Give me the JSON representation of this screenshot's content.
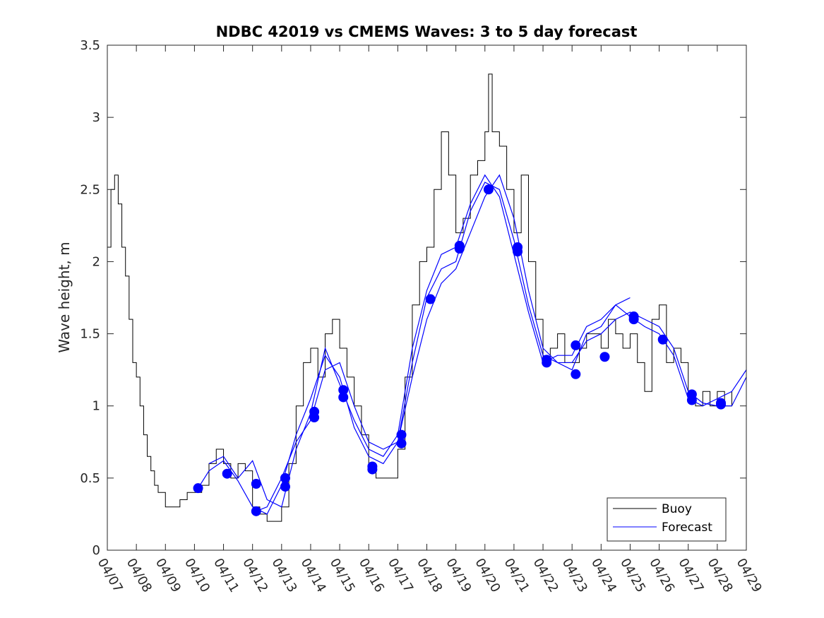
{
  "chart_data": {
    "type": "line",
    "title": "NDBC 42019 vs CMEMS Waves: 3 to 5 day forecast",
    "xlabel": "",
    "ylabel": "Wave height, m",
    "xlim": [
      "04/07",
      "04/29"
    ],
    "ylim": [
      0,
      3.5
    ],
    "y_ticks": [
      "0",
      "0.5",
      "1",
      "1.5",
      "2",
      "2.5",
      "3",
      "3.5"
    ],
    "x_ticks": [
      "04/07",
      "04/08",
      "04/09",
      "04/10",
      "04/11",
      "04/12",
      "04/13",
      "04/14",
      "04/15",
      "04/16",
      "04/17",
      "04/18",
      "04/19",
      "04/20",
      "04/21",
      "04/22",
      "04/23",
      "04/24",
      "04/25",
      "04/26",
      "04/27",
      "04/28",
      "04/29"
    ],
    "grid": false,
    "legend_position": "bottom-right",
    "legend": [
      "Buoy",
      "Forecast"
    ],
    "colors": {
      "buoy": "#000000",
      "forecast": "#0000ff"
    },
    "series": [
      {
        "name": "Buoy",
        "color": "#000000",
        "points": [
          [
            "04/07 00:00",
            2.1
          ],
          [
            "04/07 03:00",
            2.5
          ],
          [
            "04/07 06:00",
            2.6
          ],
          [
            "04/07 09:00",
            2.4
          ],
          [
            "04/07 12:00",
            2.1
          ],
          [
            "04/07 15:00",
            1.9
          ],
          [
            "04/07 18:00",
            1.6
          ],
          [
            "04/07 21:00",
            1.3
          ],
          [
            "04/08 00:00",
            1.2
          ],
          [
            "04/08 03:00",
            1.0
          ],
          [
            "04/08 06:00",
            0.8
          ],
          [
            "04/08 09:00",
            0.65
          ],
          [
            "04/08 12:00",
            0.55
          ],
          [
            "04/08 15:00",
            0.45
          ],
          [
            "04/08 18:00",
            0.4
          ],
          [
            "04/08 21:00",
            0.4
          ],
          [
            "04/09 00:00",
            0.3
          ],
          [
            "04/09 06:00",
            0.3
          ],
          [
            "04/09 12:00",
            0.35
          ],
          [
            "04/09 18:00",
            0.4
          ],
          [
            "04/10 00:00",
            0.4
          ],
          [
            "04/10 06:00",
            0.45
          ],
          [
            "04/10 12:00",
            0.6
          ],
          [
            "04/10 18:00",
            0.7
          ],
          [
            "04/11 00:00",
            0.6
          ],
          [
            "04/11 06:00",
            0.5
          ],
          [
            "04/11 12:00",
            0.6
          ],
          [
            "04/11 18:00",
            0.55
          ],
          [
            "04/12 00:00",
            0.3
          ],
          [
            "04/12 06:00",
            0.25
          ],
          [
            "04/12 12:00",
            0.2
          ],
          [
            "04/12 18:00",
            0.2
          ],
          [
            "04/13 00:00",
            0.3
          ],
          [
            "04/13 06:00",
            0.6
          ],
          [
            "04/13 12:00",
            1.0
          ],
          [
            "04/13 18:00",
            1.3
          ],
          [
            "04/14 00:00",
            1.4
          ],
          [
            "04/14 06:00",
            1.2
          ],
          [
            "04/14 12:00",
            1.5
          ],
          [
            "04/14 18:00",
            1.6
          ],
          [
            "04/15 00:00",
            1.4
          ],
          [
            "04/15 06:00",
            1.2
          ],
          [
            "04/15 12:00",
            1.0
          ],
          [
            "04/15 18:00",
            0.8
          ],
          [
            "04/16 00:00",
            0.6
          ],
          [
            "04/16 06:00",
            0.5
          ],
          [
            "04/16 12:00",
            0.5
          ],
          [
            "04/16 18:00",
            0.5
          ],
          [
            "04/17 00:00",
            0.7
          ],
          [
            "04/17 06:00",
            1.2
          ],
          [
            "04/17 12:00",
            1.7
          ],
          [
            "04/17 18:00",
            2.0
          ],
          [
            "04/18 00:00",
            2.1
          ],
          [
            "04/18 06:00",
            2.5
          ],
          [
            "04/18 12:00",
            2.9
          ],
          [
            "04/18 18:00",
            2.6
          ],
          [
            "04/19 00:00",
            2.2
          ],
          [
            "04/19 06:00",
            2.3
          ],
          [
            "04/19 12:00",
            2.6
          ],
          [
            "04/19 18:00",
            2.7
          ],
          [
            "04/20 00:00",
            2.9
          ],
          [
            "04/20 03:00",
            3.3
          ],
          [
            "04/20 06:00",
            2.9
          ],
          [
            "04/20 12:00",
            2.8
          ],
          [
            "04/20 18:00",
            2.5
          ],
          [
            "04/21 00:00",
            2.2
          ],
          [
            "04/21 06:00",
            2.6
          ],
          [
            "04/21 12:00",
            2.0
          ],
          [
            "04/21 18:00",
            1.6
          ],
          [
            "04/22 00:00",
            1.3
          ],
          [
            "04/22 06:00",
            1.4
          ],
          [
            "04/22 12:00",
            1.5
          ],
          [
            "04/22 18:00",
            1.3
          ],
          [
            "04/23 00:00",
            1.3
          ],
          [
            "04/23 06:00",
            1.4
          ],
          [
            "04/23 12:00",
            1.5
          ],
          [
            "04/23 18:00",
            1.5
          ],
          [
            "04/24 00:00",
            1.4
          ],
          [
            "04/24 06:00",
            1.6
          ],
          [
            "04/24 12:00",
            1.5
          ],
          [
            "04/24 18:00",
            1.4
          ],
          [
            "04/25 00:00",
            1.5
          ],
          [
            "04/25 06:00",
            1.3
          ],
          [
            "04/25 12:00",
            1.1
          ],
          [
            "04/25 18:00",
            1.6
          ],
          [
            "04/26 00:00",
            1.7
          ],
          [
            "04/26 06:00",
            1.3
          ],
          [
            "04/26 12:00",
            1.4
          ],
          [
            "04/26 18:00",
            1.3
          ],
          [
            "04/27 00:00",
            1.1
          ],
          [
            "04/27 06:00",
            1.0
          ],
          [
            "04/27 12:00",
            1.1
          ],
          [
            "04/27 18:00",
            1.0
          ],
          [
            "04/28 00:00",
            1.1
          ],
          [
            "04/28 06:00",
            1.0
          ],
          [
            "04/28 12:00",
            1.1
          ]
        ]
      },
      {
        "name": "Forecast",
        "color": "#0000ff",
        "markers": [
          [
            "04/10 03:00",
            0.43
          ],
          [
            "04/11 03:00",
            0.53
          ],
          [
            "04/12 03:00",
            0.46
          ],
          [
            "04/12 03:00",
            0.27
          ],
          [
            "04/13 03:00",
            0.5
          ],
          [
            "04/13 03:00",
            0.44
          ],
          [
            "04/14 03:00",
            0.96
          ],
          [
            "04/14 03:00",
            0.92
          ],
          [
            "04/15 03:00",
            1.11
          ],
          [
            "04/15 03:00",
            1.06
          ],
          [
            "04/16 03:00",
            0.58
          ],
          [
            "04/16 03:00",
            0.56
          ],
          [
            "04/17 03:00",
            0.8
          ],
          [
            "04/17 03:00",
            0.74
          ],
          [
            "04/18 03:00",
            1.74
          ],
          [
            "04/19 03:00",
            2.11
          ],
          [
            "04/19 03:00",
            2.09
          ],
          [
            "04/20 03:00",
            2.5
          ],
          [
            "04/21 03:00",
            2.1
          ],
          [
            "04/21 03:00",
            2.07
          ],
          [
            "04/22 03:00",
            1.32
          ],
          [
            "04/22 03:00",
            1.3
          ],
          [
            "04/23 03:00",
            1.42
          ],
          [
            "04/23 03:00",
            1.22
          ],
          [
            "04/24 03:00",
            1.34
          ],
          [
            "04/25 03:00",
            1.62
          ],
          [
            "04/25 03:00",
            1.6
          ],
          [
            "04/26 03:00",
            1.46
          ],
          [
            "04/27 03:00",
            1.08
          ],
          [
            "04/27 03:00",
            1.04
          ],
          [
            "04/28 03:00",
            1.02
          ],
          [
            "04/28 03:00",
            1.01
          ]
        ],
        "lines": [
          [
            [
              "04/10 03:00",
              0.43
            ],
            [
              "04/10 12:00",
              0.55
            ],
            [
              "04/11 00:00",
              0.62
            ],
            [
              "04/11 12:00",
              0.48
            ],
            [
              "04/12 00:00",
              0.3
            ],
            [
              "04/12 12:00",
              0.25
            ],
            [
              "04/13 00:00",
              0.45
            ],
            [
              "04/13 12:00",
              0.8
            ],
            [
              "04/14 00:00",
              1.05
            ],
            [
              "04/14 12:00",
              1.35
            ],
            [
              "04/15 00:00",
              1.2
            ],
            [
              "04/15 12:00",
              0.85
            ],
            [
              "04/16 00:00",
              0.65
            ],
            [
              "04/16 12:00",
              0.6
            ],
            [
              "04/17 00:00",
              0.75
            ],
            [
              "04/17 12:00",
              1.3
            ],
            [
              "04/18 00:00",
              1.75
            ],
            [
              "04/18 12:00",
              1.95
            ],
            [
              "04/19 00:00",
              2.0
            ],
            [
              "04/19 12:00",
              2.35
            ],
            [
              "04/20 00:00",
              2.55
            ],
            [
              "04/20 12:00",
              2.5
            ],
            [
              "04/21 00:00",
              2.15
            ],
            [
              "04/21 12:00",
              1.7
            ],
            [
              "04/22 00:00",
              1.35
            ],
            [
              "04/22 12:00",
              1.3
            ],
            [
              "04/23 00:00",
              1.3
            ],
            [
              "04/23 12:00",
              1.45
            ],
            [
              "04/24 00:00",
              1.5
            ],
            [
              "04/24 12:00",
              1.6
            ],
            [
              "04/25 00:00",
              1.65
            ],
            [
              "04/25 12:00",
              1.6
            ],
            [
              "04/26 00:00",
              1.55
            ],
            [
              "04/26 12:00",
              1.4
            ],
            [
              "04/27 00:00",
              1.1
            ],
            [
              "04/27 12:00",
              1.02
            ],
            [
              "04/28 00:00",
              1.0
            ],
            [
              "04/28 12:00",
              1.0
            ],
            [
              "04/29 00:00",
              1.2
            ]
          ],
          [
            [
              "04/10 12:00",
              0.6
            ],
            [
              "04/11 00:00",
              0.65
            ],
            [
              "04/11 12:00",
              0.5
            ],
            [
              "04/12 00:00",
              0.62
            ],
            [
              "04/12 12:00",
              0.35
            ],
            [
              "04/13 00:00",
              0.3
            ],
            [
              "04/13 12:00",
              0.7
            ],
            [
              "04/14 00:00",
              0.95
            ],
            [
              "04/14 12:00",
              1.4
            ],
            [
              "04/15 00:00",
              1.15
            ],
            [
              "04/15 12:00",
              0.9
            ],
            [
              "04/16 00:00",
              0.7
            ],
            [
              "04/16 12:00",
              0.65
            ],
            [
              "04/17 00:00",
              0.8
            ],
            [
              "04/17 12:00",
              1.4
            ],
            [
              "04/18 00:00",
              1.8
            ],
            [
              "04/18 12:00",
              2.05
            ],
            [
              "04/19 00:00",
              2.1
            ],
            [
              "04/19 12:00",
              2.4
            ],
            [
              "04/20 00:00",
              2.6
            ],
            [
              "04/20 12:00",
              2.45
            ],
            [
              "04/21 00:00",
              2.05
            ],
            [
              "04/21 12:00",
              1.65
            ],
            [
              "04/22 00:00",
              1.3
            ],
            [
              "04/22 12:00",
              1.35
            ],
            [
              "04/23 00:00",
              1.35
            ],
            [
              "04/23 12:00",
              1.55
            ],
            [
              "04/24 00:00",
              1.6
            ],
            [
              "04/24 12:00",
              1.7
            ],
            [
              "04/25 00:00",
              1.62
            ],
            [
              "04/25 12:00",
              1.55
            ],
            [
              "04/26 00:00",
              1.5
            ],
            [
              "04/26 12:00",
              1.35
            ],
            [
              "04/27 00:00",
              1.05
            ],
            [
              "04/27 12:00",
              1.0
            ],
            [
              "04/28 00:00",
              1.05
            ],
            [
              "04/28 12:00",
              1.1
            ],
            [
              "04/29 00:00",
              1.25
            ]
          ],
          [
            [
              "04/12 03:00",
              0.27
            ],
            [
              "04/12 12:00",
              0.3
            ],
            [
              "04/13 00:00",
              0.5
            ],
            [
              "04/13 12:00",
              0.75
            ],
            [
              "04/14 00:00",
              0.9
            ],
            [
              "04/14 12:00",
              1.25
            ],
            [
              "04/15 00:00",
              1.3
            ],
            [
              "04/15 12:00",
              1.0
            ],
            [
              "04/16 00:00",
              0.75
            ],
            [
              "04/16 12:00",
              0.7
            ],
            [
              "04/17 00:00",
              0.75
            ],
            [
              "04/17 12:00",
              1.2
            ],
            [
              "04/18 00:00",
              1.6
            ],
            [
              "04/18 12:00",
              1.85
            ],
            [
              "04/19 00:00",
              1.95
            ],
            [
              "04/19 12:00",
              2.2
            ],
            [
              "04/20 00:00",
              2.45
            ],
            [
              "04/20 12:00",
              2.6
            ],
            [
              "04/21 00:00",
              2.3
            ],
            [
              "04/21 12:00",
              1.8
            ],
            [
              "04/22 00:00",
              1.4
            ],
            [
              "04/22 12:00",
              1.3
            ],
            [
              "04/23 00:00",
              1.25
            ],
            [
              "04/23 12:00",
              1.5
            ],
            [
              "04/24 00:00",
              1.55
            ],
            [
              "04/24 12:00",
              1.7
            ],
            [
              "04/25 00:00",
              1.75
            ]
          ]
        ]
      }
    ]
  }
}
